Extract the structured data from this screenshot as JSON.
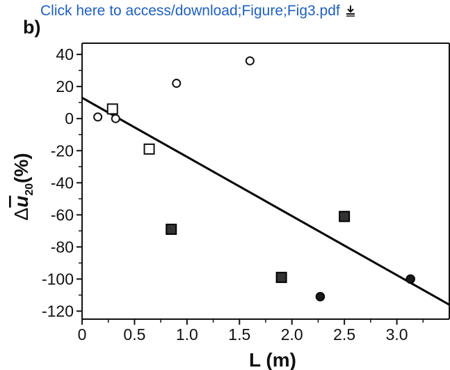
{
  "header": {
    "link_text": "Click here to access/download;Figure;Fig3.pdf",
    "download_icon": "download-icon",
    "link_color": "#1f5fbf"
  },
  "panel_label": "b)",
  "chart_data": {
    "type": "scatter",
    "xlabel": "L (m)",
    "ylabel_parts": {
      "delta": "Δ",
      "u": "u",
      "subscript": "20",
      "unit": "(%)"
    },
    "xlim": [
      0,
      3.5
    ],
    "ylim": [
      -125,
      47
    ],
    "x_ticks": [
      0,
      0.5,
      1.0,
      1.5,
      2.0,
      2.5,
      3.0
    ],
    "x_tick_labels": [
      "0",
      "0.5",
      "1.0",
      "1.5",
      "2.0",
      "2.5",
      "3.0"
    ],
    "y_ticks": [
      40,
      20,
      0,
      -20,
      -40,
      -60,
      -80,
      -100,
      -120
    ],
    "y_tick_labels": [
      "40",
      "20",
      "0",
      "-20",
      "-40",
      "-60",
      "-80",
      "-100",
      "-120"
    ],
    "series": [
      {
        "marker": "open-circle",
        "points": [
          [
            0.15,
            1
          ],
          [
            0.32,
            0
          ],
          [
            0.9,
            22
          ],
          [
            1.6,
            36
          ]
        ]
      },
      {
        "marker": "open-square",
        "points": [
          [
            0.29,
            6
          ],
          [
            0.64,
            -19
          ]
        ]
      },
      {
        "marker": "filled-square",
        "points": [
          [
            0.85,
            -69
          ],
          [
            1.9,
            -99
          ],
          [
            2.5,
            -61
          ]
        ]
      },
      {
        "marker": "filled-circle",
        "points": [
          [
            2.27,
            -111
          ],
          [
            3.13,
            -100
          ]
        ]
      }
    ],
    "trend_line": {
      "x": [
        0,
        3.5
      ],
      "y": [
        13,
        -116
      ]
    },
    "grid": false
  }
}
